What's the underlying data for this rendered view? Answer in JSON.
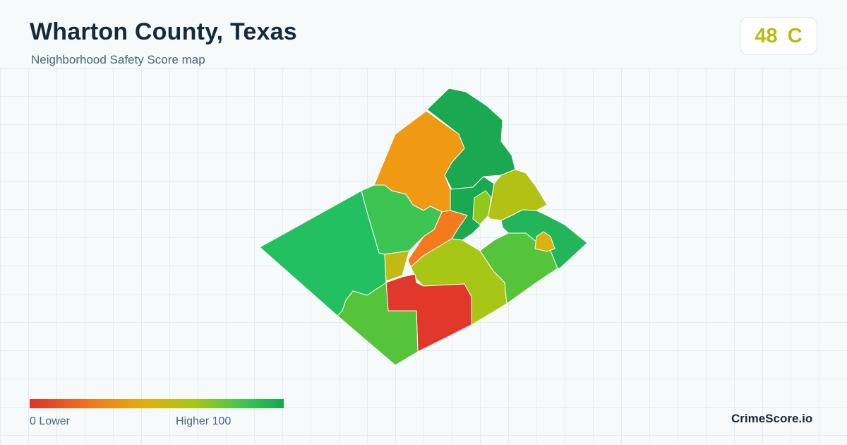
{
  "header": {
    "title": "Wharton County, Texas",
    "subtitle": "Neighborhood Safety Score map"
  },
  "score": {
    "value": "48",
    "grade": "C",
    "color": "#b7bc12"
  },
  "legend": {
    "low_label": "0  Lower",
    "high_label": "Higher  100",
    "colors": [
      "#e0322a",
      "#f07a1e",
      "#e2ae0c",
      "#a7c716",
      "#3dc553",
      "#17a451"
    ]
  },
  "brand": "CrimeScore.io",
  "map": {
    "regions": [
      {
        "name": "west-region",
        "color": "#22c060"
      },
      {
        "name": "north-region",
        "color": "#1aa850"
      },
      {
        "name": "north-central-region",
        "color": "#ef9a12"
      },
      {
        "name": "central-west-region",
        "color": "#3dc553"
      },
      {
        "name": "east-central-region",
        "color": "#1aa850"
      },
      {
        "name": "northeast-region",
        "color": "#b1c214"
      },
      {
        "name": "central-orange-region",
        "color": "#f47a1e"
      },
      {
        "name": "central-yellow-region",
        "color": "#a8c616"
      },
      {
        "name": "south-red-region",
        "color": "#e0382a"
      },
      {
        "name": "southwest-region",
        "color": "#56c43b"
      },
      {
        "name": "southeast-region",
        "color": "#56c43b"
      },
      {
        "name": "east-region",
        "color": "#22b55a"
      },
      {
        "name": "east-small-yellow-region",
        "color": "#d9b20e"
      },
      {
        "name": "small-yellow-region",
        "color": "#c2b914"
      },
      {
        "name": "tiny-green-region",
        "color": "#90c81c"
      }
    ]
  }
}
